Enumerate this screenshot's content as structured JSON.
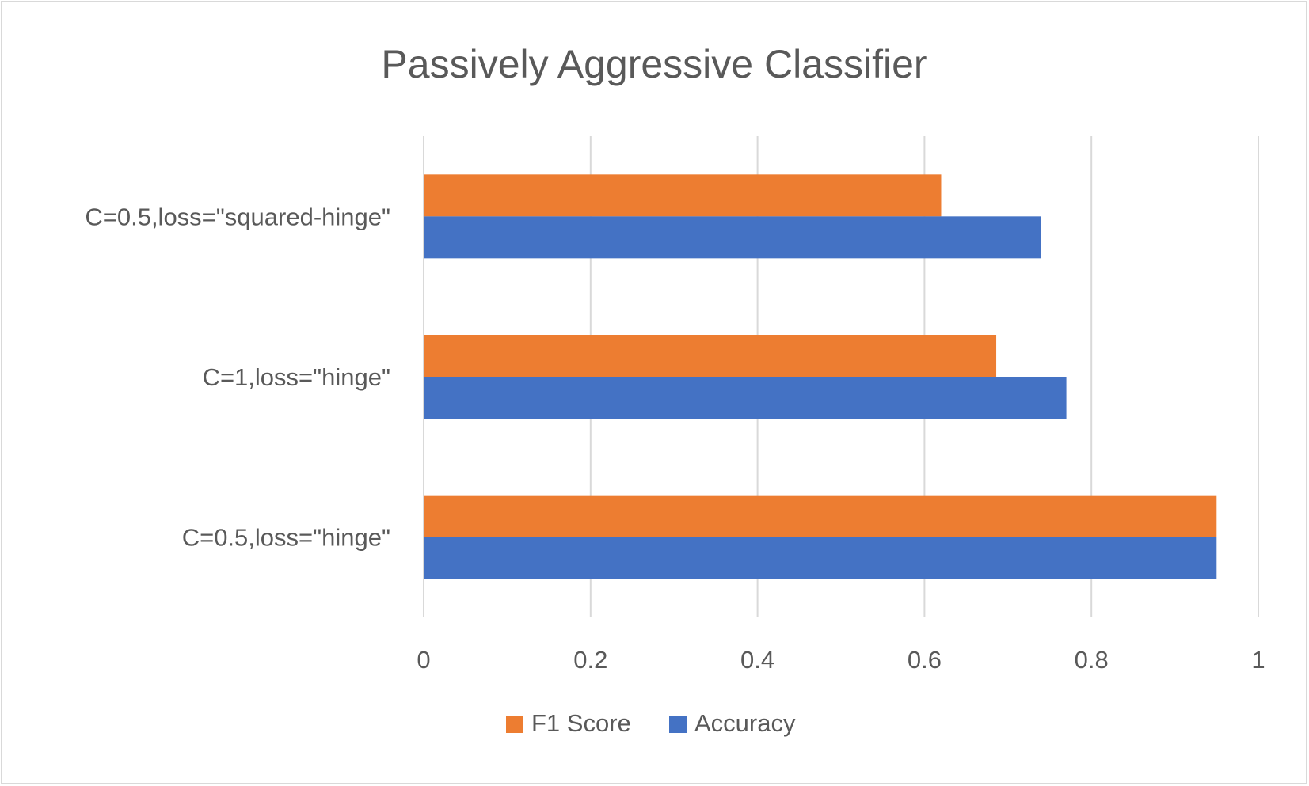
{
  "chart_data": {
    "type": "bar",
    "orientation": "horizontal",
    "title": "Passively Aggressive Classifier",
    "xlabel": "",
    "ylabel": "",
    "categories": [
      "C=0.5,loss=\"squared-hinge\"",
      "C=1,loss=\"hinge\"",
      "C=0.5,loss=\"hinge\""
    ],
    "series": [
      {
        "name": "F1 Score",
        "color": "#ED7D31",
        "values": [
          0.62,
          0.686,
          0.95
        ]
      },
      {
        "name": "Accuracy",
        "color": "#4472C4",
        "values": [
          0.74,
          0.77,
          0.95
        ]
      }
    ],
    "xlim": [
      0,
      1
    ],
    "xticks": [
      "0",
      "0.2",
      "0.4",
      "0.6",
      "0.8",
      "1"
    ],
    "grid": true,
    "legend_position": "bottom"
  }
}
